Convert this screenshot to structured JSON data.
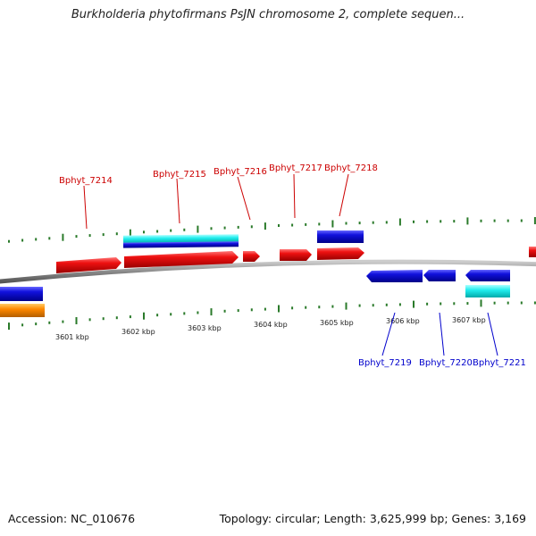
{
  "title": "Burkholderia phytofirmans PsJN chromosome 2, complete sequen...",
  "footer": {
    "accession": "Accession: NC_010676",
    "summary": "Topology: circular; Length: 3,625,999 bp; Genes: 3,169"
  },
  "colors": {
    "forward_label": "#cc0000",
    "reverse_label": "#0000cc",
    "gene_red": "#ee1111",
    "gene_blue": "#1111dd",
    "gene_cyan": "#22eeee",
    "gene_orange": "#ff8800",
    "tick": "#2a7a2a",
    "backbone": "#888888"
  },
  "scale_labels": [
    "3601 kbp",
    "3602 kbp",
    "3603 kbp",
    "3604 kbp",
    "3605 kbp",
    "3606 kbp",
    "3607 kbp"
  ],
  "genes_forward": [
    "Bphyt_7214",
    "Bphyt_7215",
    "Bphyt_7216",
    "Bphyt_7217",
    "Bphyt_7218"
  ],
  "genes_reverse": [
    "Bphyt_7219",
    "Bphyt_7220",
    "Bphyt_7221"
  ]
}
